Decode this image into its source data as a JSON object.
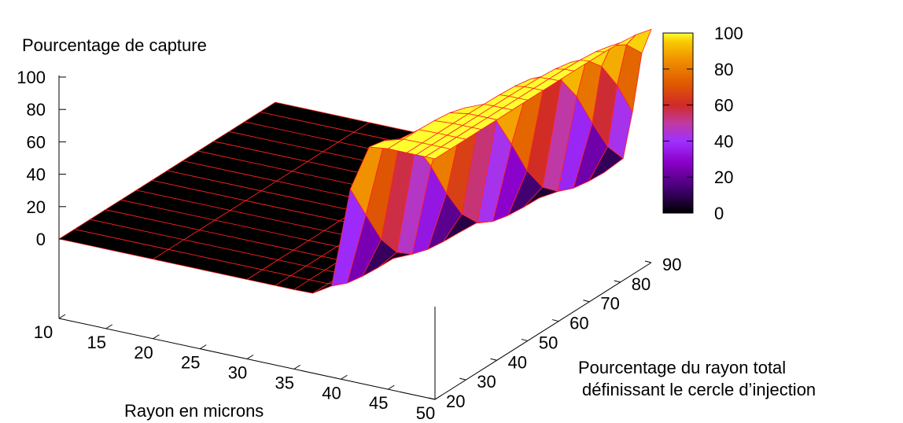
{
  "chart_data": {
    "type": "surface3d",
    "zlabel": "Pourcentage de capture",
    "xlabel": "Rayon en microns",
    "ylabel_line1": "Pourcentage du rayon total",
    "ylabel_line2": "définissant le cercle d’injection",
    "x_ticks": [
      "10",
      "15",
      "20",
      "25",
      "30",
      "35",
      "40",
      "45",
      "50"
    ],
    "y_ticks": [
      "20",
      "30",
      "40",
      "50",
      "60",
      "70",
      "80",
      "90"
    ],
    "z_ticks": [
      "0",
      "20",
      "40",
      "60",
      "80",
      "100"
    ],
    "colorbar_ticks": [
      "0",
      "20",
      "40",
      "60",
      "80",
      "100"
    ],
    "xlim": [
      10,
      50
    ],
    "ylim": [
      20,
      90
    ],
    "zlim": [
      0,
      100
    ],
    "palette": [
      "#000000",
      "#3a0066",
      "#8a00c8",
      "#a030ff",
      "#c03aa0",
      "#d02a28",
      "#e05a00",
      "#f09000",
      "#f8c800",
      "#ffff30"
    ],
    "surface_model": "capture(r, p) ≈ 0 for r < ~41 µm; rises to 100% near r ≈ 49 µm; onset shifts to higher r as p increases",
    "x_grid": [
      10,
      20,
      30,
      33,
      35,
      37,
      39,
      41,
      43,
      45,
      47,
      48,
      49,
      50
    ],
    "y_grid": [
      20,
      25,
      30,
      35,
      40,
      45,
      50,
      55,
      60,
      65,
      70,
      75,
      80,
      85,
      90
    ]
  }
}
